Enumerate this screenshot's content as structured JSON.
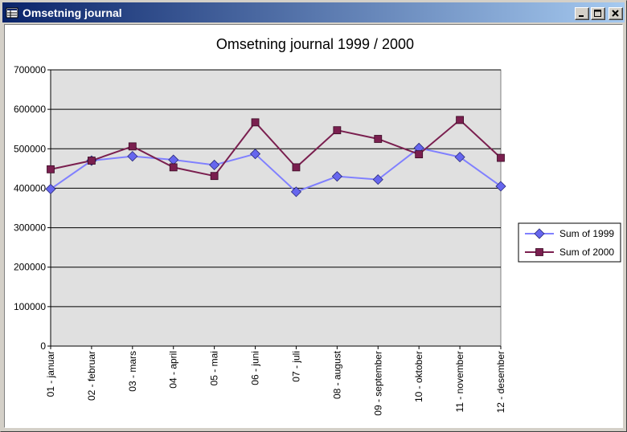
{
  "window": {
    "title": "Omsetning journal",
    "controls": {
      "minimize": "minimize-icon",
      "maximize": "maximize-icon",
      "close": "close-icon"
    }
  },
  "colors": {
    "titlebar_start": "#0a246a",
    "titlebar_end": "#a6caf0",
    "plot_area": "#e0e0e0",
    "series_1999": "#8080ff",
    "series_1999_marker": "#6666ee",
    "series_2000": "#7a1f4f",
    "series_2000_marker": "#7a1f4f"
  },
  "chart_data": {
    "type": "line",
    "title": "Omsetning journal 1999 / 2000",
    "categories": [
      "01 - januar",
      "02 - februar",
      "03 - mars",
      "04 - april",
      "05 - mai",
      "06 - juni",
      "07 - juli",
      "08 - august",
      "09 - september",
      "10 - oktober",
      "11 - november",
      "12 - desember"
    ],
    "series": [
      {
        "name": "Sum of 1999",
        "marker": "diamond",
        "values": [
          398000,
          470000,
          481000,
          472000,
          459000,
          487000,
          391000,
          430000,
          422000,
          502000,
          479000,
          405000
        ]
      },
      {
        "name": "Sum of 2000",
        "marker": "square",
        "values": [
          448000,
          470000,
          506000,
          453000,
          431000,
          567000,
          453000,
          547000,
          525000,
          486000,
          573000,
          477000
        ]
      }
    ],
    "ylim": [
      0,
      700000
    ],
    "yticks": [
      "0",
      "100000",
      "200000",
      "300000",
      "400000",
      "500000",
      "600000",
      "700000"
    ],
    "grid": true,
    "legend_position": "right"
  }
}
